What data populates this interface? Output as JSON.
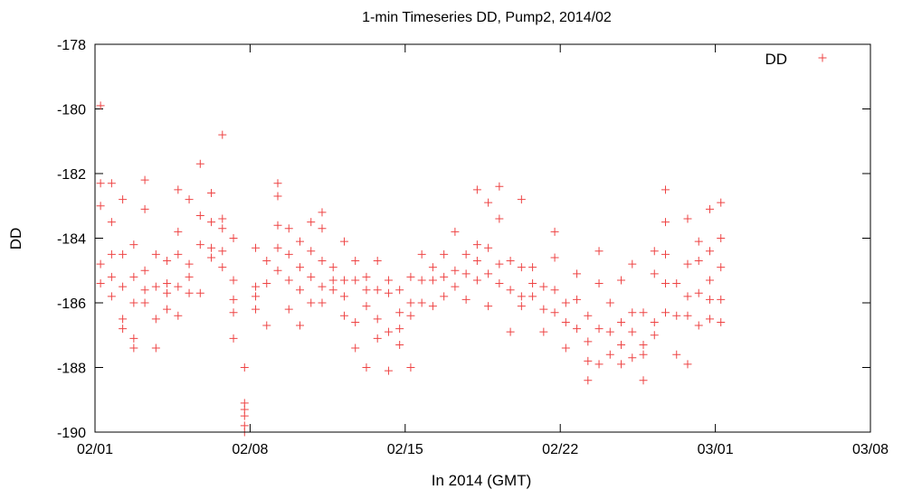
{
  "chart_data": {
    "type": "scatter",
    "title": "1-min Timeseries DD, Pump2, 2014/02",
    "xlabel": "In 2014 (GMT)",
    "ylabel": "DD",
    "xlim": [
      "2014-02-01",
      "2014-03-08"
    ],
    "ylim": [
      -190,
      -178
    ],
    "x_ticks": [
      {
        "date": "2014-02-01",
        "label": "02/01"
      },
      {
        "date": "2014-02-08",
        "label": "02/08"
      },
      {
        "date": "2014-02-15",
        "label": "02/15"
      },
      {
        "date": "2014-02-22",
        "label": "02/22"
      },
      {
        "date": "2014-03-01",
        "label": "03/01"
      },
      {
        "date": "2014-03-08",
        "label": "03/08"
      }
    ],
    "y_ticks": [
      {
        "value": -178,
        "label": "-178"
      },
      {
        "value": -180,
        "label": "-180"
      },
      {
        "value": -182,
        "label": "-182"
      },
      {
        "value": -184,
        "label": "-184"
      },
      {
        "value": -186,
        "label": "-186"
      },
      {
        "value": -188,
        "label": "-188"
      },
      {
        "value": -190,
        "label": "-190"
      }
    ],
    "grid": false,
    "legend": "top-right",
    "series": [
      {
        "name": "DD",
        "color": "#ee4444",
        "marker": "plus",
        "points": [
          [
            "2014-02-01 06:00",
            -179.9
          ],
          [
            "2014-02-01 06:00",
            -182.3
          ],
          [
            "2014-02-01 06:00",
            -183.0
          ],
          [
            "2014-02-01 06:00",
            -184.8
          ],
          [
            "2014-02-01 06:00",
            -185.4
          ],
          [
            "2014-02-01 18:00",
            -182.3
          ],
          [
            "2014-02-01 18:00",
            -183.5
          ],
          [
            "2014-02-01 18:00",
            -184.5
          ],
          [
            "2014-02-01 18:00",
            -185.2
          ],
          [
            "2014-02-01 18:00",
            -185.8
          ],
          [
            "2014-02-02 06:00",
            -182.8
          ],
          [
            "2014-02-02 06:00",
            -184.5
          ],
          [
            "2014-02-02 06:00",
            -185.5
          ],
          [
            "2014-02-02 06:00",
            -186.5
          ],
          [
            "2014-02-02 06:00",
            -186.8
          ],
          [
            "2014-02-02 18:00",
            -184.2
          ],
          [
            "2014-02-02 18:00",
            -185.2
          ],
          [
            "2014-02-02 18:00",
            -186.0
          ],
          [
            "2014-02-02 18:00",
            -187.1
          ],
          [
            "2014-02-02 18:00",
            -187.4
          ],
          [
            "2014-02-03 06:00",
            -182.2
          ],
          [
            "2014-02-03 06:00",
            -183.1
          ],
          [
            "2014-02-03 06:00",
            -185.0
          ],
          [
            "2014-02-03 06:00",
            -185.6
          ],
          [
            "2014-02-03 06:00",
            -186.0
          ],
          [
            "2014-02-03 18:00",
            -184.5
          ],
          [
            "2014-02-03 18:00",
            -185.5
          ],
          [
            "2014-02-03 18:00",
            -186.5
          ],
          [
            "2014-02-03 18:00",
            -187.4
          ],
          [
            "2014-02-04 06:00",
            -184.7
          ],
          [
            "2014-02-04 06:00",
            -185.4
          ],
          [
            "2014-02-04 06:00",
            -185.7
          ],
          [
            "2014-02-04 06:00",
            -186.2
          ],
          [
            "2014-02-04 18:00",
            -182.5
          ],
          [
            "2014-02-04 18:00",
            -183.8
          ],
          [
            "2014-02-04 18:00",
            -184.5
          ],
          [
            "2014-02-04 18:00",
            -185.5
          ],
          [
            "2014-02-04 18:00",
            -186.4
          ],
          [
            "2014-02-05 06:00",
            -182.8
          ],
          [
            "2014-02-05 06:00",
            -184.8
          ],
          [
            "2014-02-05 06:00",
            -185.2
          ],
          [
            "2014-02-05 06:00",
            -185.7
          ],
          [
            "2014-02-05 18:00",
            -181.7
          ],
          [
            "2014-02-05 18:00",
            -183.3
          ],
          [
            "2014-02-05 18:00",
            -184.2
          ],
          [
            "2014-02-05 18:00",
            -185.7
          ],
          [
            "2014-02-06 06:00",
            -182.6
          ],
          [
            "2014-02-06 06:00",
            -183.5
          ],
          [
            "2014-02-06 06:00",
            -184.3
          ],
          [
            "2014-02-06 06:00",
            -184.6
          ],
          [
            "2014-02-06 18:00",
            -180.8
          ],
          [
            "2014-02-06 18:00",
            -183.4
          ],
          [
            "2014-02-06 18:00",
            -183.7
          ],
          [
            "2014-02-06 18:00",
            -184.4
          ],
          [
            "2014-02-06 18:00",
            -184.9
          ],
          [
            "2014-02-07 06:00",
            -184.0
          ],
          [
            "2014-02-07 06:00",
            -185.3
          ],
          [
            "2014-02-07 06:00",
            -185.9
          ],
          [
            "2014-02-07 06:00",
            -186.3
          ],
          [
            "2014-02-07 06:00",
            -187.1
          ],
          [
            "2014-02-07 18:00",
            -188.0
          ],
          [
            "2014-02-07 18:00",
            -189.1
          ],
          [
            "2014-02-07 18:00",
            -189.3
          ],
          [
            "2014-02-07 18:00",
            -189.5
          ],
          [
            "2014-02-07 18:00",
            -189.8
          ],
          [
            "2014-02-07 18:00",
            -190.0
          ],
          [
            "2014-02-08 06:00",
            -184.3
          ],
          [
            "2014-02-08 06:00",
            -185.5
          ],
          [
            "2014-02-08 06:00",
            -185.8
          ],
          [
            "2014-02-08 06:00",
            -186.2
          ],
          [
            "2014-02-08 18:00",
            -184.7
          ],
          [
            "2014-02-08 18:00",
            -185.4
          ],
          [
            "2014-02-08 18:00",
            -186.7
          ],
          [
            "2014-02-09 06:00",
            -182.3
          ],
          [
            "2014-02-09 06:00",
            -182.7
          ],
          [
            "2014-02-09 06:00",
            -183.6
          ],
          [
            "2014-02-09 06:00",
            -184.3
          ],
          [
            "2014-02-09 06:00",
            -185.0
          ],
          [
            "2014-02-09 18:00",
            -183.7
          ],
          [
            "2014-02-09 18:00",
            -184.5
          ],
          [
            "2014-02-09 18:00",
            -185.3
          ],
          [
            "2014-02-09 18:00",
            -186.2
          ],
          [
            "2014-02-10 06:00",
            -184.1
          ],
          [
            "2014-02-10 06:00",
            -184.9
          ],
          [
            "2014-02-10 06:00",
            -185.6
          ],
          [
            "2014-02-10 06:00",
            -186.7
          ],
          [
            "2014-02-10 18:00",
            -183.5
          ],
          [
            "2014-02-10 18:00",
            -184.4
          ],
          [
            "2014-02-10 18:00",
            -185.2
          ],
          [
            "2014-02-10 18:00",
            -186.0
          ],
          [
            "2014-02-11 06:00",
            -183.2
          ],
          [
            "2014-02-11 06:00",
            -183.7
          ],
          [
            "2014-02-11 06:00",
            -184.7
          ],
          [
            "2014-02-11 06:00",
            -185.5
          ],
          [
            "2014-02-11 06:00",
            -186.0
          ],
          [
            "2014-02-11 18:00",
            -184.9
          ],
          [
            "2014-02-11 18:00",
            -185.3
          ],
          [
            "2014-02-11 18:00",
            -185.6
          ],
          [
            "2014-02-12 06:00",
            -184.1
          ],
          [
            "2014-02-12 06:00",
            -185.3
          ],
          [
            "2014-02-12 06:00",
            -185.8
          ],
          [
            "2014-02-12 06:00",
            -186.4
          ],
          [
            "2014-02-12 18:00",
            -184.7
          ],
          [
            "2014-02-12 18:00",
            -185.3
          ],
          [
            "2014-02-12 18:00",
            -186.6
          ],
          [
            "2014-02-12 18:00",
            -187.4
          ],
          [
            "2014-02-13 06:00",
            -185.2
          ],
          [
            "2014-02-13 06:00",
            -185.6
          ],
          [
            "2014-02-13 06:00",
            -186.1
          ],
          [
            "2014-02-13 06:00",
            -188.0
          ],
          [
            "2014-02-13 18:00",
            -184.7
          ],
          [
            "2014-02-13 18:00",
            -185.6
          ],
          [
            "2014-02-13 18:00",
            -186.5
          ],
          [
            "2014-02-13 18:00",
            -187.1
          ],
          [
            "2014-02-14 06:00",
            -185.3
          ],
          [
            "2014-02-14 06:00",
            -185.7
          ],
          [
            "2014-02-14 06:00",
            -186.9
          ],
          [
            "2014-02-14 06:00",
            -188.1
          ],
          [
            "2014-02-14 18:00",
            -185.6
          ],
          [
            "2014-02-14 18:00",
            -186.3
          ],
          [
            "2014-02-14 18:00",
            -186.8
          ],
          [
            "2014-02-14 18:00",
            -187.3
          ],
          [
            "2014-02-15 06:00",
            -185.2
          ],
          [
            "2014-02-15 06:00",
            -186.0
          ],
          [
            "2014-02-15 06:00",
            -186.4
          ],
          [
            "2014-02-15 06:00",
            -188.0
          ],
          [
            "2014-02-15 18:00",
            -184.5
          ],
          [
            "2014-02-15 18:00",
            -185.3
          ],
          [
            "2014-02-15 18:00",
            -186.0
          ],
          [
            "2014-02-16 06:00",
            -184.9
          ],
          [
            "2014-02-16 06:00",
            -185.3
          ],
          [
            "2014-02-16 06:00",
            -186.1
          ],
          [
            "2014-02-16 18:00",
            -184.5
          ],
          [
            "2014-02-16 18:00",
            -185.2
          ],
          [
            "2014-02-16 18:00",
            -185.8
          ],
          [
            "2014-02-17 06:00",
            -183.8
          ],
          [
            "2014-02-17 06:00",
            -185.0
          ],
          [
            "2014-02-17 06:00",
            -185.5
          ],
          [
            "2014-02-17 18:00",
            -184.5
          ],
          [
            "2014-02-17 18:00",
            -185.1
          ],
          [
            "2014-02-17 18:00",
            -185.9
          ],
          [
            "2014-02-18 06:00",
            -182.5
          ],
          [
            "2014-02-18 06:00",
            -184.2
          ],
          [
            "2014-02-18 06:00",
            -184.7
          ],
          [
            "2014-02-18 06:00",
            -185.3
          ],
          [
            "2014-02-18 18:00",
            -182.9
          ],
          [
            "2014-02-18 18:00",
            -184.3
          ],
          [
            "2014-02-18 18:00",
            -185.1
          ],
          [
            "2014-02-18 18:00",
            -186.1
          ],
          [
            "2014-02-19 06:00",
            -182.4
          ],
          [
            "2014-02-19 06:00",
            -183.4
          ],
          [
            "2014-02-19 06:00",
            -184.8
          ],
          [
            "2014-02-19 06:00",
            -185.4
          ],
          [
            "2014-02-19 18:00",
            -184.7
          ],
          [
            "2014-02-19 18:00",
            -185.6
          ],
          [
            "2014-02-19 18:00",
            -186.9
          ],
          [
            "2014-02-20 06:00",
            -182.8
          ],
          [
            "2014-02-20 06:00",
            -184.9
          ],
          [
            "2014-02-20 06:00",
            -185.8
          ],
          [
            "2014-02-20 06:00",
            -186.1
          ],
          [
            "2014-02-20 18:00",
            -184.9
          ],
          [
            "2014-02-20 18:00",
            -185.4
          ],
          [
            "2014-02-20 18:00",
            -185.8
          ],
          [
            "2014-02-21 06:00",
            -185.5
          ],
          [
            "2014-02-21 06:00",
            -186.2
          ],
          [
            "2014-02-21 06:00",
            -186.9
          ],
          [
            "2014-02-21 18:00",
            -183.8
          ],
          [
            "2014-02-21 18:00",
            -184.6
          ],
          [
            "2014-02-21 18:00",
            -185.6
          ],
          [
            "2014-02-21 18:00",
            -186.3
          ],
          [
            "2014-02-22 06:00",
            -186.0
          ],
          [
            "2014-02-22 06:00",
            -186.6
          ],
          [
            "2014-02-22 06:00",
            -187.4
          ],
          [
            "2014-02-22 18:00",
            -185.1
          ],
          [
            "2014-02-22 18:00",
            -185.9
          ],
          [
            "2014-02-22 18:00",
            -186.8
          ],
          [
            "2014-02-23 06:00",
            -186.4
          ],
          [
            "2014-02-23 06:00",
            -187.2
          ],
          [
            "2014-02-23 06:00",
            -187.8
          ],
          [
            "2014-02-23 06:00",
            -188.4
          ],
          [
            "2014-02-23 18:00",
            -184.4
          ],
          [
            "2014-02-23 18:00",
            -185.4
          ],
          [
            "2014-02-23 18:00",
            -186.8
          ],
          [
            "2014-02-23 18:00",
            -187.9
          ],
          [
            "2014-02-24 06:00",
            -186.0
          ],
          [
            "2014-02-24 06:00",
            -186.9
          ],
          [
            "2014-02-24 06:00",
            -187.6
          ],
          [
            "2014-02-24 18:00",
            -185.3
          ],
          [
            "2014-02-24 18:00",
            -186.6
          ],
          [
            "2014-02-24 18:00",
            -187.3
          ],
          [
            "2014-02-24 18:00",
            -187.9
          ],
          [
            "2014-02-25 06:00",
            -184.8
          ],
          [
            "2014-02-25 06:00",
            -186.3
          ],
          [
            "2014-02-25 06:00",
            -186.9
          ],
          [
            "2014-02-25 06:00",
            -187.7
          ],
          [
            "2014-02-25 18:00",
            -186.3
          ],
          [
            "2014-02-25 18:00",
            -187.3
          ],
          [
            "2014-02-25 18:00",
            -187.6
          ],
          [
            "2014-02-25 18:00",
            -188.4
          ],
          [
            "2014-02-26 06:00",
            -184.4
          ],
          [
            "2014-02-26 06:00",
            -185.1
          ],
          [
            "2014-02-26 06:00",
            -186.6
          ],
          [
            "2014-02-26 06:00",
            -187.0
          ],
          [
            "2014-02-26 18:00",
            -182.5
          ],
          [
            "2014-02-26 18:00",
            -183.5
          ],
          [
            "2014-02-26 18:00",
            -184.5
          ],
          [
            "2014-02-26 18:00",
            -185.4
          ],
          [
            "2014-02-26 18:00",
            -186.3
          ],
          [
            "2014-02-27 06:00",
            -185.4
          ],
          [
            "2014-02-27 06:00",
            -186.4
          ],
          [
            "2014-02-27 06:00",
            -187.6
          ],
          [
            "2014-02-27 18:00",
            -183.4
          ],
          [
            "2014-02-27 18:00",
            -184.8
          ],
          [
            "2014-02-27 18:00",
            -185.8
          ],
          [
            "2014-02-27 18:00",
            -186.4
          ],
          [
            "2014-02-27 18:00",
            -187.9
          ],
          [
            "2014-02-28 06:00",
            -184.1
          ],
          [
            "2014-02-28 06:00",
            -184.7
          ],
          [
            "2014-02-28 06:00",
            -185.7
          ],
          [
            "2014-02-28 06:00",
            -186.7
          ],
          [
            "2014-02-28 18:00",
            -183.1
          ],
          [
            "2014-02-28 18:00",
            -184.4
          ],
          [
            "2014-02-28 18:00",
            -185.3
          ],
          [
            "2014-02-28 18:00",
            -185.9
          ],
          [
            "2014-02-28 18:00",
            -186.5
          ],
          [
            "2014-03-01 06:00",
            -182.9
          ],
          [
            "2014-03-01 06:00",
            -184.0
          ],
          [
            "2014-03-01 06:00",
            -184.9
          ],
          [
            "2014-03-01 06:00",
            -185.9
          ],
          [
            "2014-03-01 06:00",
            -186.6
          ]
        ]
      }
    ]
  }
}
